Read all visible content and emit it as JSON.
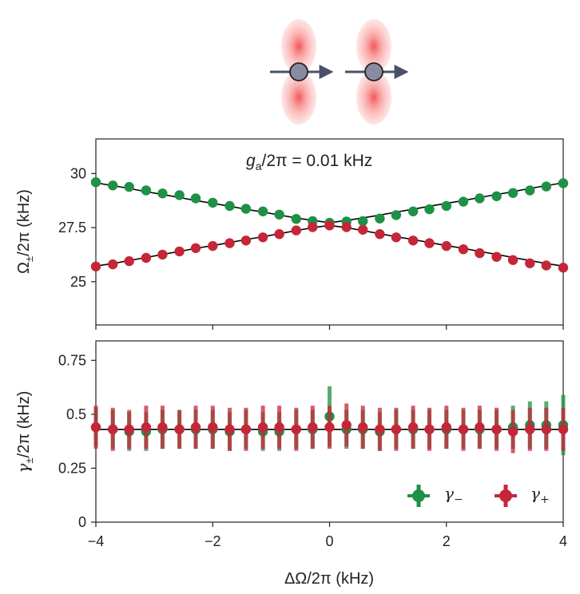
{
  "colors": {
    "green": "#1e9147",
    "red": "#c52638",
    "fit": "#000000",
    "arrow": "#4a5068",
    "ball": "#8a8aa0",
    "lobe": "#f04848"
  },
  "chart_data": [
    {
      "type": "scatter",
      "panel": "top",
      "xlabel": "ΔΩ/2π (kHz)",
      "ylabel": "Ω±/2π (kHz)",
      "ylabel_parts": {
        "main": "Ω",
        "sub": "±",
        "rest": "/2π (kHz)"
      },
      "xlim": [
        -4,
        4
      ],
      "ylim": [
        23.0,
        31.6
      ],
      "yticks": [
        25,
        27.5,
        30
      ],
      "ytick_labels": [
        "25",
        "27.5",
        "30"
      ],
      "annotation": {
        "g": "g",
        "sub": "a",
        "rest": "/2π = 0.01 kHz"
      },
      "x": [
        -4.0,
        -3.71,
        -3.43,
        -3.14,
        -2.86,
        -2.57,
        -2.29,
        -2.0,
        -1.71,
        -1.43,
        -1.14,
        -0.86,
        -0.57,
        -0.29,
        0.0,
        0.29,
        0.57,
        0.86,
        1.14,
        1.43,
        1.71,
        2.0,
        2.29,
        2.57,
        2.86,
        3.14,
        3.43,
        3.71,
        4.0
      ],
      "series": [
        {
          "name": "Ω−",
          "color": "green",
          "values": [
            29.6,
            29.45,
            29.38,
            29.22,
            29.08,
            29.0,
            28.85,
            28.65,
            28.5,
            28.37,
            28.25,
            28.1,
            27.9,
            27.8,
            27.72,
            27.78,
            27.8,
            27.92,
            28.08,
            28.25,
            28.35,
            28.5,
            28.7,
            28.85,
            28.95,
            29.1,
            29.22,
            29.4,
            29.55
          ]
        },
        {
          "name": "Ω+",
          "color": "red",
          "values": [
            25.7,
            25.8,
            25.95,
            26.1,
            26.25,
            26.4,
            26.55,
            26.65,
            26.78,
            26.9,
            27.05,
            27.2,
            27.37,
            27.52,
            27.6,
            27.52,
            27.4,
            27.2,
            27.05,
            26.9,
            26.78,
            26.65,
            26.5,
            26.32,
            26.15,
            26.0,
            25.85,
            25.75,
            25.65
          ]
        }
      ],
      "fits": [
        {
          "name": "fit-upper",
          "values": [
            29.57,
            29.44,
            29.31,
            29.16,
            29.03,
            28.89,
            28.75,
            28.62,
            28.49,
            28.35,
            28.22,
            28.08,
            27.95,
            27.83,
            27.73,
            27.83,
            27.95,
            28.08,
            28.22,
            28.35,
            28.49,
            28.62,
            28.75,
            28.89,
            29.03,
            29.16,
            29.31,
            29.44,
            29.57
          ]
        },
        {
          "name": "fit-lower",
          "values": [
            25.72,
            25.84,
            25.98,
            26.12,
            26.26,
            26.4,
            26.54,
            26.67,
            26.81,
            26.95,
            27.08,
            27.22,
            27.36,
            27.5,
            27.6,
            27.5,
            27.36,
            27.22,
            27.08,
            26.95,
            26.81,
            26.67,
            26.54,
            26.4,
            26.26,
            26.12,
            25.98,
            25.84,
            25.72
          ]
        }
      ]
    },
    {
      "type": "scatter",
      "panel": "bottom",
      "xlabel": "ΔΩ/2π (kHz)",
      "ylabel": "γ±/2π (kHz)",
      "ylabel_parts": {
        "main": "γ",
        "sub": "±",
        "rest": "/2π (kHz)"
      },
      "xlim": [
        -4,
        4
      ],
      "ylim": [
        0,
        0.84
      ],
      "xticks": [
        -4,
        -2,
        0,
        2,
        4
      ],
      "xtick_labels": [
        "−4",
        "−2",
        "0",
        "2",
        "4"
      ],
      "yticks": [
        0,
        0.25,
        0.5,
        0.75
      ],
      "ytick_labels": [
        "0",
        "0.25",
        "0.5",
        "0.75"
      ],
      "fit_value": 0.43,
      "legend_position": "lower-right",
      "x": [
        -4.0,
        -3.71,
        -3.43,
        -3.14,
        -2.86,
        -2.57,
        -2.29,
        -2.0,
        -1.71,
        -1.43,
        -1.14,
        -0.86,
        -0.57,
        -0.29,
        0.0,
        0.29,
        0.57,
        0.86,
        1.14,
        1.43,
        1.71,
        2.0,
        2.29,
        2.57,
        2.86,
        3.14,
        3.43,
        3.71,
        4.0
      ],
      "series": [
        {
          "name": "γ−",
          "legend": {
            "main": "γ",
            "sub": "−"
          },
          "color": "green",
          "values": [
            0.44,
            0.43,
            0.42,
            0.42,
            0.43,
            0.43,
            0.43,
            0.43,
            0.42,
            0.43,
            0.42,
            0.42,
            0.43,
            0.43,
            0.49,
            0.43,
            0.43,
            0.42,
            0.43,
            0.43,
            0.43,
            0.43,
            0.43,
            0.43,
            0.43,
            0.44,
            0.45,
            0.45,
            0.45
          ],
          "errors": [
            0.09,
            0.09,
            0.09,
            0.09,
            0.09,
            0.09,
            0.09,
            0.09,
            0.09,
            0.09,
            0.09,
            0.09,
            0.09,
            0.09,
            0.14,
            0.09,
            0.09,
            0.09,
            0.09,
            0.09,
            0.09,
            0.09,
            0.09,
            0.09,
            0.09,
            0.1,
            0.11,
            0.11,
            0.14
          ]
        },
        {
          "name": "γ+",
          "legend": {
            "main": "γ",
            "sub": "+"
          },
          "color": "red",
          "values": [
            0.44,
            0.43,
            0.43,
            0.44,
            0.44,
            0.43,
            0.44,
            0.44,
            0.43,
            0.43,
            0.44,
            0.44,
            0.43,
            0.44,
            0.44,
            0.45,
            0.44,
            0.43,
            0.43,
            0.44,
            0.43,
            0.44,
            0.43,
            0.44,
            0.43,
            0.42,
            0.43,
            0.43,
            0.43
          ],
          "errors": [
            0.1,
            0.1,
            0.09,
            0.1,
            0.1,
            0.09,
            0.1,
            0.1,
            0.1,
            0.1,
            0.1,
            0.1,
            0.1,
            0.1,
            0.1,
            0.1,
            0.1,
            0.1,
            0.1,
            0.1,
            0.1,
            0.1,
            0.1,
            0.1,
            0.1,
            0.1,
            0.1,
            0.1,
            0.1
          ]
        }
      ]
    }
  ]
}
